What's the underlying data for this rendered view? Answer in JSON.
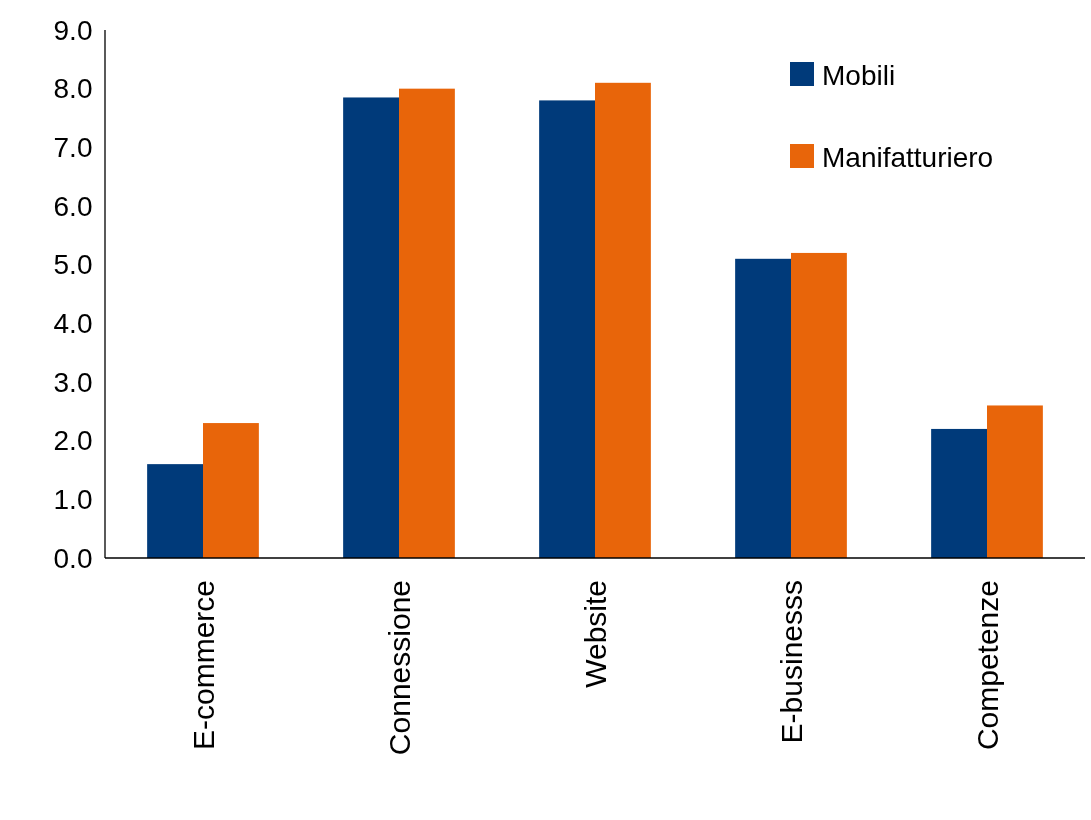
{
  "chart_data": {
    "type": "bar",
    "categories": [
      "E-commerce",
      "Connessione",
      "Website",
      "E-businesss",
      "Competenze"
    ],
    "series": [
      {
        "name": "Mobili",
        "color": "#003a7a",
        "values": [
          1.6,
          7.85,
          7.8,
          5.1,
          2.2
        ]
      },
      {
        "name": "Manifatturiero",
        "color": "#e8650a",
        "values": [
          2.3,
          8.0,
          8.1,
          5.2,
          2.6
        ]
      }
    ],
    "ylim": [
      0,
      9
    ],
    "yticks": [
      {
        "value": 0,
        "label": "0.0"
      },
      {
        "value": 1,
        "label": "1.0"
      },
      {
        "value": 2,
        "label": "2.0"
      },
      {
        "value": 3,
        "label": "3.0"
      },
      {
        "value": 4,
        "label": "4.0"
      },
      {
        "value": 5,
        "label": "5.0"
      },
      {
        "value": 6,
        "label": "6.0"
      },
      {
        "value": 7,
        "label": "7.0"
      },
      {
        "value": 8,
        "label": "8.0"
      },
      {
        "value": 9,
        "label": "9.0"
      }
    ],
    "grid": false,
    "legend": "top right"
  }
}
